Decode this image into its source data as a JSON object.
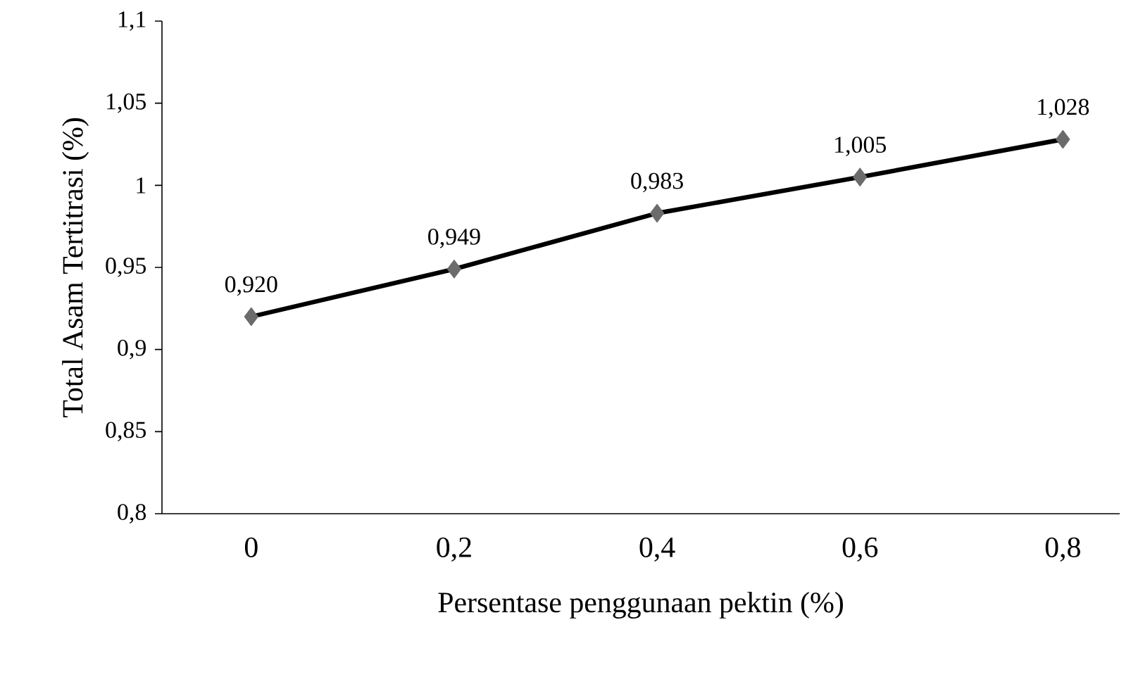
{
  "chart_data": {
    "type": "line",
    "xlabel": "Persentase penggunaan pektin (%)",
    "ylabel": "Total Asam Tertitrasi (%)",
    "categories": [
      "0",
      "0,2",
      "0,4",
      "0,6",
      "0,8"
    ],
    "series": [
      {
        "color": "#000000",
        "values": [
          0.92,
          0.949,
          0.983,
          1.005,
          1.028
        ],
        "value_labels": [
          "0,920",
          "0,949",
          "0,983",
          "1,005",
          "1,028"
        ]
      }
    ],
    "ylim": [
      0.8,
      1.1
    ],
    "yticks": [
      {
        "value": 0.8,
        "label": "0,8"
      },
      {
        "value": 0.85,
        "label": "0,85"
      },
      {
        "value": 0.9,
        "label": "0,9"
      },
      {
        "value": 0.95,
        "label": "0,95"
      },
      {
        "value": 1,
        "label": "1"
      },
      {
        "value": 1.05,
        "label": "1,05"
      },
      {
        "value": 1.1,
        "label": "1,1"
      }
    ],
    "grid": false,
    "marker": "diamond",
    "line_style": "solid"
  }
}
